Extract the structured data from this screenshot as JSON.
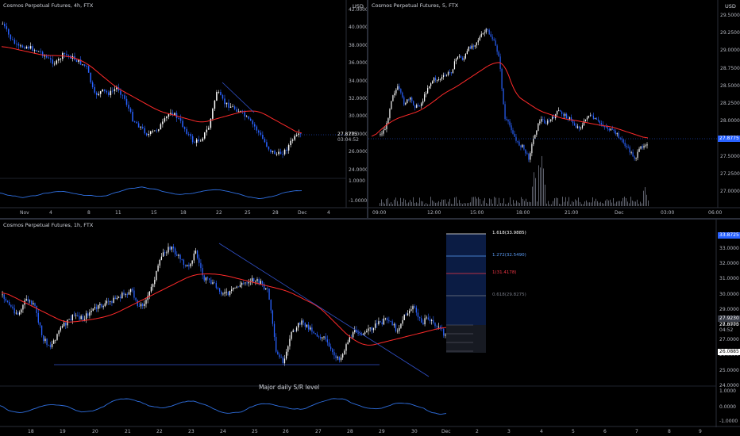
{
  "panels": {
    "tl": {
      "title": "Cosmos Perpetual Futures, 4h, FTX",
      "unit": "USD",
      "price_ticks": [
        "42.0000",
        "40.0000",
        "38.0000",
        "36.0000",
        "34.0000",
        "32.0000",
        "30.0000",
        "28.0000",
        "26.0000",
        "24.0000"
      ],
      "osc_ticks": [
        "1.0000",
        "-1.0000"
      ],
      "time_ticks": [
        "Nov",
        "4",
        "8",
        "11",
        "15",
        "18",
        "22",
        "25",
        "28",
        "Dec",
        "4"
      ],
      "last_price": "27.8775",
      "countdown": "03:04:52"
    },
    "tr": {
      "title": "Cosmos Perpetual Futures, 5, FTX",
      "unit": "USD",
      "price_ticks": [
        "29.5000",
        "29.2500",
        "29.0000",
        "28.7500",
        "28.5000",
        "28.2500",
        "28.0000",
        "27.7500",
        "27.5000",
        "27.2500",
        "27.0000"
      ],
      "time_ticks": [
        "09:00",
        "12:00",
        "15:00",
        "18:00",
        "21:00",
        "Dec",
        "03:00",
        "06:00"
      ],
      "last_price": "27.8775"
    },
    "bottom": {
      "title": "Cosmos Perpetual Futures, 1h, FTX",
      "price_ticks": [
        "33.0000",
        "32.0000",
        "31.0000",
        "30.0000",
        "29.0000",
        "28.0000",
        "27.0000",
        "26.0000",
        "25.0000",
        "24.0000"
      ],
      "osc_ticks": [
        "1.0000",
        "0.0000",
        "-1.0000"
      ],
      "time_ticks": [
        "18",
        "19",
        "20",
        "21",
        "22",
        "23",
        "24",
        "25",
        "26",
        "27",
        "28",
        "29",
        "30",
        "Dec",
        "2",
        "3",
        "4",
        "5",
        "6",
        "7",
        "8",
        "9"
      ],
      "tags": {
        "fib_top": "33.8725",
        "price_a": "27.9230",
        "last_price": "27.8775",
        "countdown": "04:52",
        "low": "26.0885"
      },
      "fib_levels": [
        {
          "label": "1.618(33.9885)",
          "color": "#ffffff"
        },
        {
          "label": "1.272(32.5490)",
          "color": "#5b9cf6"
        },
        {
          "label": "1(31.4178)",
          "color": "#f23645"
        },
        {
          "label": "0.618(29.8275)",
          "color": "#787b86"
        }
      ],
      "annotation": "Major daily S/R level"
    }
  },
  "colors": {
    "up": "#ffffff",
    "down": "#2962ff",
    "ma": "#ff2a2a",
    "osc": "#2f6fe0",
    "trend": "#3050c8"
  }
}
